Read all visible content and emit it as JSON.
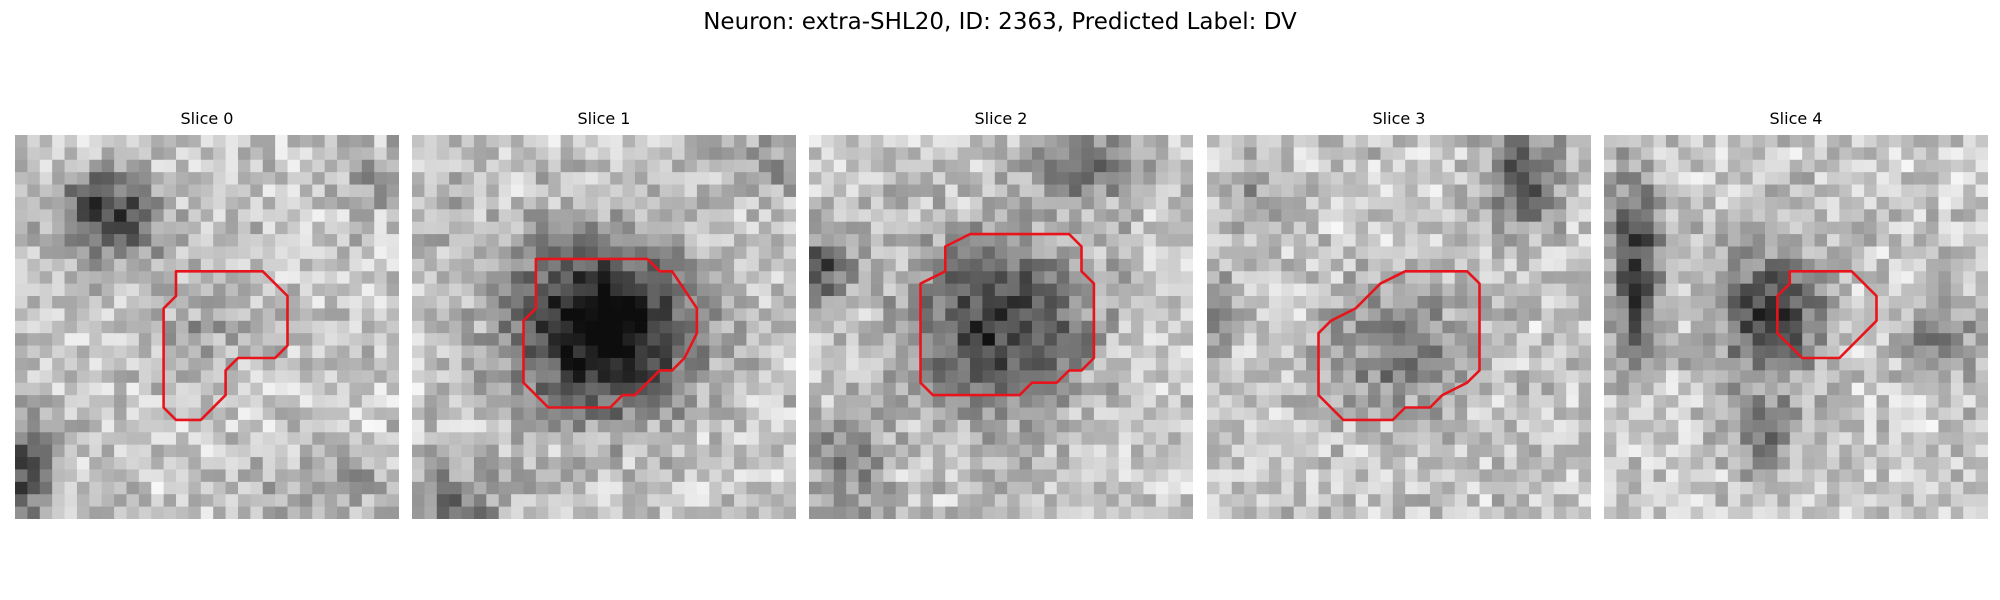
{
  "figure": {
    "title": "Neuron: extra-SHL20, ID: 2363, Predicted Label: DV"
  },
  "slices": [
    {
      "title": "Slice 0"
    },
    {
      "title": "Slice 1"
    },
    {
      "title": "Slice 2"
    },
    {
      "title": "Slice 3"
    },
    {
      "title": "Slice 4"
    }
  ],
  "colors": {
    "contour": "#e8141c",
    "background": "#ffffff"
  }
}
